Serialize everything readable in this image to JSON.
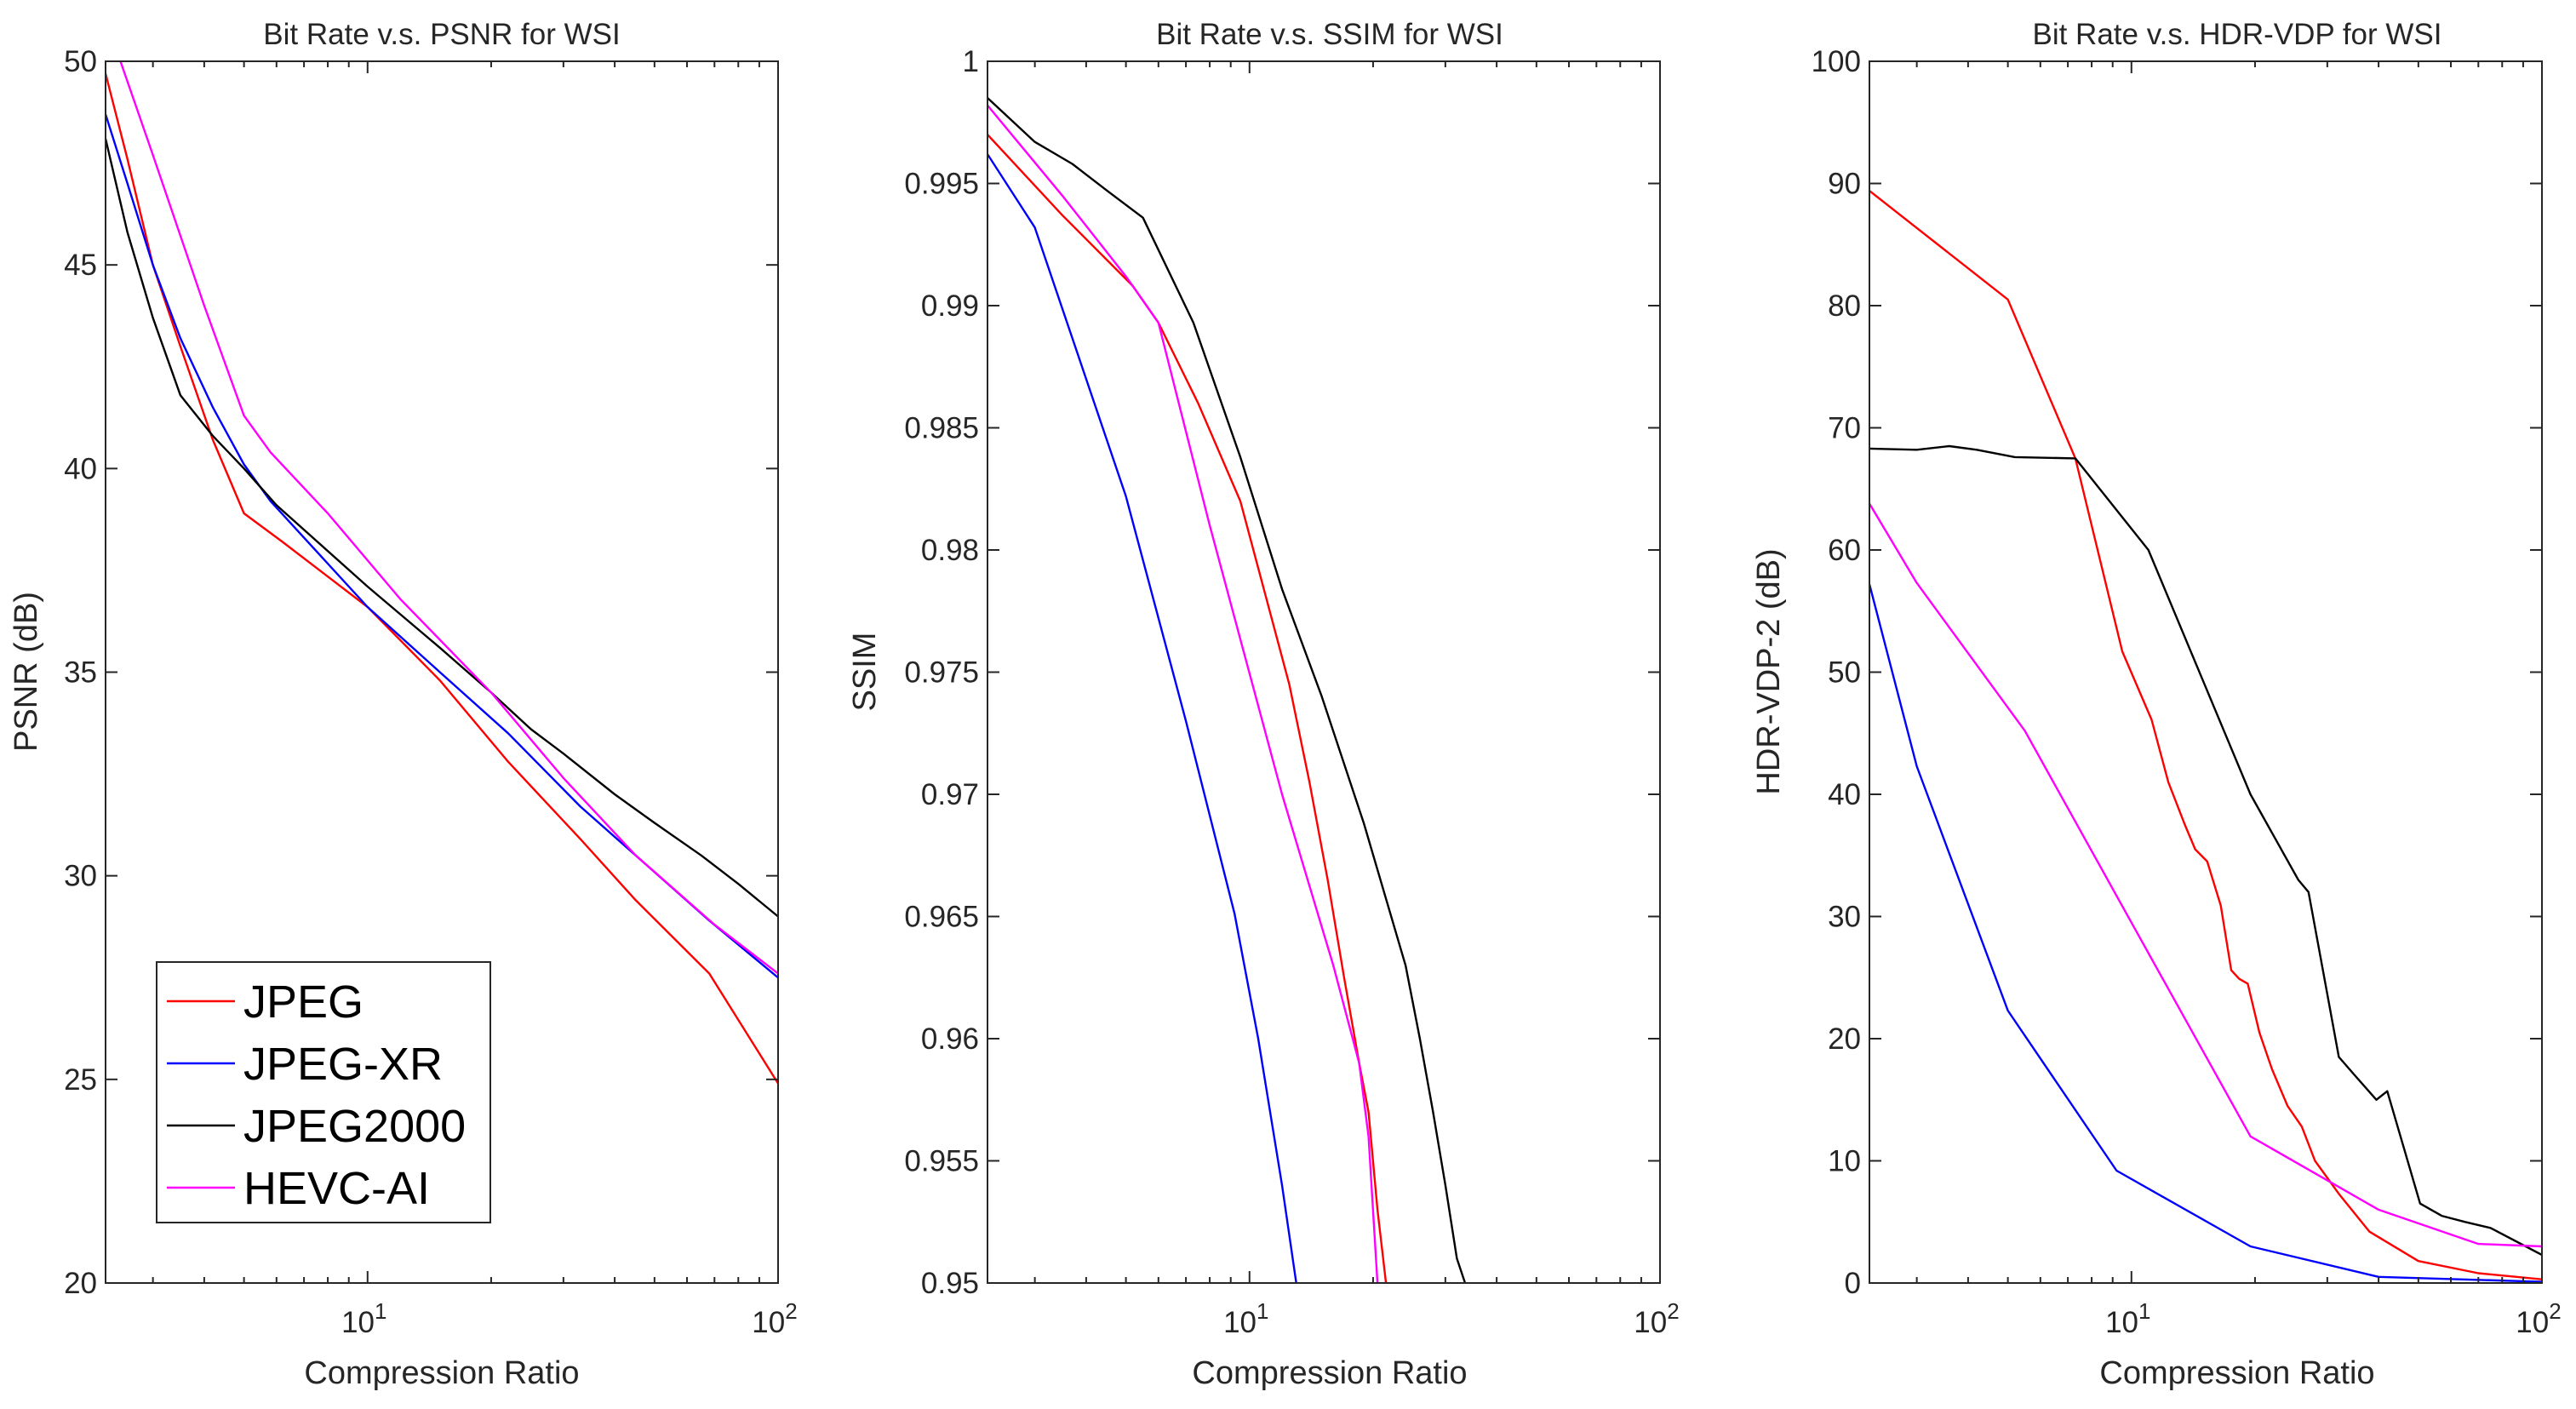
{
  "legend": {
    "entries": [
      {
        "name": "JPEG",
        "color": "#ff0000"
      },
      {
        "name": "JPEG-XR",
        "color": "#0000ff"
      },
      {
        "name": "JPEG2000",
        "color": "#000000"
      },
      {
        "name": "HEVC-AI",
        "color": "#ff00ff"
      }
    ]
  },
  "chart_data": [
    {
      "type": "line",
      "title": "Bit Rate v.s. PSNR for WSI",
      "xlabel": "Compression Ratio",
      "ylabel": "PSNR (dB)",
      "xscale": "log",
      "xlim": [
        2.3,
        100
      ],
      "ylim": [
        20,
        50
      ],
      "yticks": [
        "20",
        "25",
        "30",
        "35",
        "40",
        "45",
        "50"
      ],
      "xticks": [
        {
          "base": "10",
          "exp": "1"
        },
        {
          "base": "10",
          "exp": "2"
        }
      ],
      "legend_position": "bottom-left",
      "series": [
        {
          "name": "JPEG",
          "color": "#ff0000",
          "x": [
            2.3,
            2.6,
            3.0,
            3.5,
            4.2,
            5.0,
            6.2,
            10,
            15,
            22,
            33,
            45,
            68,
            100
          ],
          "y": [
            49.7,
            47.6,
            45.0,
            43.0,
            40.7,
            38.9,
            38.2,
            36.6,
            34.8,
            32.8,
            30.9,
            29.4,
            27.6,
            24.9
          ]
        },
        {
          "name": "JPEG-XR",
          "color": "#0000ff",
          "x": [
            2.3,
            2.6,
            3.0,
            3.5,
            4.2,
            5.0,
            5.8,
            10,
            15,
            22,
            33,
            45,
            68,
            100
          ],
          "y": [
            48.7,
            47.0,
            45.0,
            43.2,
            41.5,
            40.1,
            39.2,
            36.6,
            35.0,
            33.5,
            31.7,
            30.5,
            28.9,
            27.5
          ]
        },
        {
          "name": "JPEG2000",
          "color": "#000000",
          "x": [
            2.3,
            2.6,
            3.0,
            3.5,
            4.2,
            5.0,
            6.0,
            10,
            15,
            20,
            25,
            30,
            40,
            50,
            65,
            80,
            100
          ],
          "y": [
            48.1,
            45.8,
            43.7,
            41.8,
            40.8,
            40.0,
            39.1,
            37.1,
            35.6,
            34.5,
            33.6,
            33.0,
            32.0,
            31.3,
            30.5,
            29.8,
            29.0
          ]
        },
        {
          "name": "HEVC-AI",
          "color": "#ff00ff",
          "x": [
            2.3,
            2.5,
            3.0,
            4.0,
            5.0,
            5.8,
            8.0,
            12,
            20,
            30,
            45,
            70,
            100
          ],
          "y": [
            50.7,
            50.0,
            47.7,
            44.0,
            41.3,
            40.4,
            38.9,
            36.8,
            34.5,
            32.4,
            30.5,
            28.8,
            27.6
          ]
        }
      ]
    },
    {
      "type": "line",
      "title": "Bit Rate v.s. SSIM for WSI",
      "xlabel": "Compression Ratio",
      "ylabel": "SSIM",
      "xscale": "log",
      "xlim": [
        2.3,
        100
      ],
      "ylim": [
        0.95,
        1
      ],
      "yticks": [
        "0.95",
        "0.955",
        "0.96",
        "0.965",
        "0.97",
        "0.975",
        "0.98",
        "0.985",
        "0.99",
        "0.995",
        "1"
      ],
      "xticks": [
        {
          "base": "10",
          "exp": "1"
        },
        {
          "base": "10",
          "exp": "2"
        }
      ],
      "series": [
        {
          "name": "JPEG",
          "color": "#ff0000",
          "x": [
            2.3,
            3.5,
            5.2,
            6.0,
            7.5,
            9.5,
            11.0,
            12.5,
            14.0,
            15.5,
            17.0,
            18.5,
            19.5,
            20.5,
            21.5
          ],
          "y": [
            0.997,
            0.9937,
            0.9908,
            0.9893,
            0.986,
            0.982,
            0.978,
            0.9745,
            0.9705,
            0.9665,
            0.9625,
            0.959,
            0.957,
            0.953,
            0.95
          ]
        },
        {
          "name": "JPEG-XR",
          "color": "#0000ff",
          "x": [
            2.3,
            3.0,
            5.0,
            7.0,
            9.2,
            10.5,
            12.0,
            13.0
          ],
          "y": [
            0.9962,
            0.9932,
            0.9822,
            0.973,
            0.9651,
            0.96,
            0.954,
            0.95
          ]
        },
        {
          "name": "JPEG2000",
          "color": "#000000",
          "x": [
            2.3,
            3.0,
            3.7,
            4.5,
            5.5,
            7.3,
            9.5,
            12,
            15,
            19,
            24,
            26,
            28,
            30,
            32,
            33.5
          ],
          "y": [
            0.9985,
            0.9967,
            0.9958,
            0.9947,
            0.9936,
            0.9893,
            0.9838,
            0.9784,
            0.974,
            0.9688,
            0.963,
            0.96,
            0.957,
            0.954,
            0.951,
            0.95
          ]
        },
        {
          "name": "HEVC-AI",
          "color": "#ff00ff",
          "x": [
            2.3,
            3.5,
            5.0,
            6.0,
            8.0,
            12,
            16,
            18.5,
            19.5,
            20.5
          ],
          "y": [
            0.9982,
            0.9945,
            0.9912,
            0.9893,
            0.981,
            0.97,
            0.963,
            0.959,
            0.956,
            0.95
          ]
        }
      ]
    },
    {
      "type": "line",
      "title": "Bit Rate v.s. HDR-VDP for WSI",
      "xlabel": "Compression Ratio",
      "ylabel": "HDR-VDP-2 (dB)",
      "xscale": "log",
      "xlim": [
        2.3,
        100
      ],
      "ylim": [
        0,
        100
      ],
      "yticks": [
        "0",
        "10",
        "20",
        "30",
        "40",
        "50",
        "60",
        "70",
        "80",
        "90",
        "100"
      ],
      "xticks": [
        {
          "base": "10",
          "exp": "1"
        },
        {
          "base": "10",
          "exp": "2"
        }
      ],
      "series": [
        {
          "name": "JPEG",
          "color": "#ff0000",
          "x": [
            2.3,
            5.0,
            7.3,
            9.5,
            11.2,
            12.3,
            13.5,
            14.3,
            15.3,
            16.5,
            17.5,
            18.3,
            19.2,
            20.5,
            22,
            24,
            26,
            28,
            32,
            38,
            50,
            70,
            100
          ],
          "y": [
            89.4,
            80.5,
            67.5,
            51.7,
            46.1,
            41.0,
            37.5,
            35.5,
            34.5,
            30.9,
            25.6,
            24.9,
            24.5,
            20.5,
            17.5,
            14.5,
            12.8,
            10.0,
            7.3,
            4.2,
            1.8,
            0.8,
            0.3
          ]
        },
        {
          "name": "JPEG-XR",
          "color": "#0000ff",
          "x": [
            2.3,
            3.0,
            5.0,
            9.2,
            19.5,
            40,
            100
          ],
          "y": [
            57.2,
            42.3,
            22.3,
            9.2,
            3.0,
            0.5,
            0.1
          ]
        },
        {
          "name": "JPEG2000",
          "color": "#000000",
          "x": [
            2.3,
            3.0,
            3.6,
            4.2,
            5.2,
            7.3,
            11.0,
            19.5,
            25.5,
            27.0,
            29.5,
            32.0,
            35.0,
            39.5,
            42.0,
            50.5,
            57,
            65,
            75,
            100
          ],
          "y": [
            68.3,
            68.2,
            68.5,
            68.2,
            67.6,
            67.5,
            60.0,
            40.0,
            33.0,
            32.0,
            25.0,
            18.5,
            17.0,
            15.0,
            15.7,
            6.5,
            5.5,
            5.0,
            4.5,
            2.3
          ]
        },
        {
          "name": "HEVC-AI",
          "color": "#ff00ff",
          "x": [
            2.3,
            3.0,
            5.5,
            10,
            19.5,
            40,
            70,
            100
          ],
          "y": [
            63.8,
            57.3,
            45.2,
            29.5,
            12.0,
            6.0,
            3.2,
            3.0
          ]
        }
      ]
    }
  ]
}
